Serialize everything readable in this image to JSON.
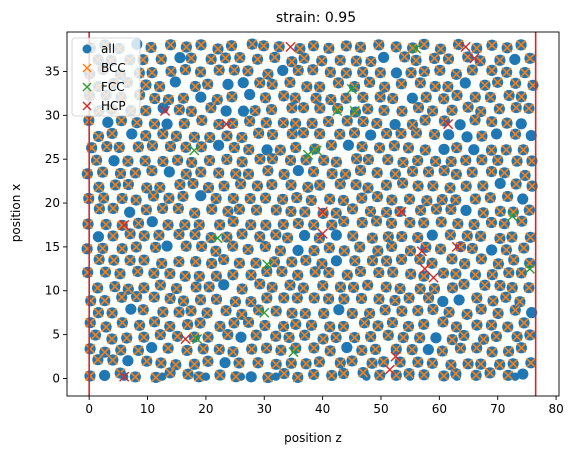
{
  "chart_data": {
    "type": "scatter",
    "title": "strain: 0.95",
    "xlabel": "position z",
    "ylabel": "position x",
    "xlim": [
      -3.8,
      80.5
    ],
    "ylim": [
      -2.0,
      39.5
    ],
    "xticks": [
      0,
      10,
      20,
      30,
      40,
      50,
      60,
      70,
      80
    ],
    "yticks": [
      0,
      5,
      10,
      15,
      20,
      25,
      30,
      35
    ],
    "grid": false,
    "legend_position": "top-left",
    "boundary_lines_x": [
      0.0,
      76.5
    ],
    "boundary_color": "#d62728",
    "lattice": {
      "z_spacing": 2.75,
      "x_spacing": 1.44,
      "z_max": 76.5,
      "x_max": 38.0
    },
    "series": [
      {
        "name": "all",
        "marker": "circle",
        "color": "#1f77b4"
      },
      {
        "name": "BCC",
        "marker": "x",
        "color": "#ff7f0e"
      },
      {
        "name": "FCC",
        "marker": "x",
        "color": "#2ca02c"
      },
      {
        "name": "HCP",
        "marker": "x",
        "color": "#d62728"
      }
    ],
    "fcc_points": [
      [
        56,
        37.6
      ],
      [
        72.5,
        18.5
      ],
      [
        75.5,
        12.5
      ],
      [
        30.5,
        13
      ],
      [
        22,
        16
      ],
      [
        35,
        3
      ],
      [
        18.5,
        4.5
      ],
      [
        42.5,
        30.5
      ],
      [
        45.5,
        30.5
      ],
      [
        39,
        26
      ],
      [
        37.5,
        25.5
      ],
      [
        45,
        33
      ],
      [
        30,
        7.5
      ],
      [
        18,
        26
      ]
    ],
    "hcp_points": [
      [
        6,
        17.5
      ],
      [
        13,
        30.5
      ],
      [
        23.5,
        29
      ],
      [
        34.5,
        37.8
      ],
      [
        61.5,
        29
      ],
      [
        40,
        19
      ],
      [
        40,
        16.5
      ],
      [
        53.5,
        19
      ],
      [
        57,
        14.5
      ],
      [
        57.5,
        12.5
      ],
      [
        59,
        11.5
      ],
      [
        16.5,
        4.5
      ],
      [
        51.5,
        1
      ],
      [
        52.5,
        2.5
      ],
      [
        66,
        36.5
      ],
      [
        64.5,
        37.8
      ],
      [
        6,
        0.2
      ],
      [
        63,
        15
      ]
    ],
    "vacancy_points": [
      [
        6,
        0.2
      ],
      [
        12.5,
        0.2
      ],
      [
        20,
        0.2
      ],
      [
        26,
        0.2
      ],
      [
        32,
        0.2
      ],
      [
        47.5,
        0.2
      ],
      [
        55,
        0.2
      ],
      [
        63,
        0.2
      ],
      [
        73,
        0.2
      ],
      [
        0,
        0.2
      ]
    ]
  }
}
